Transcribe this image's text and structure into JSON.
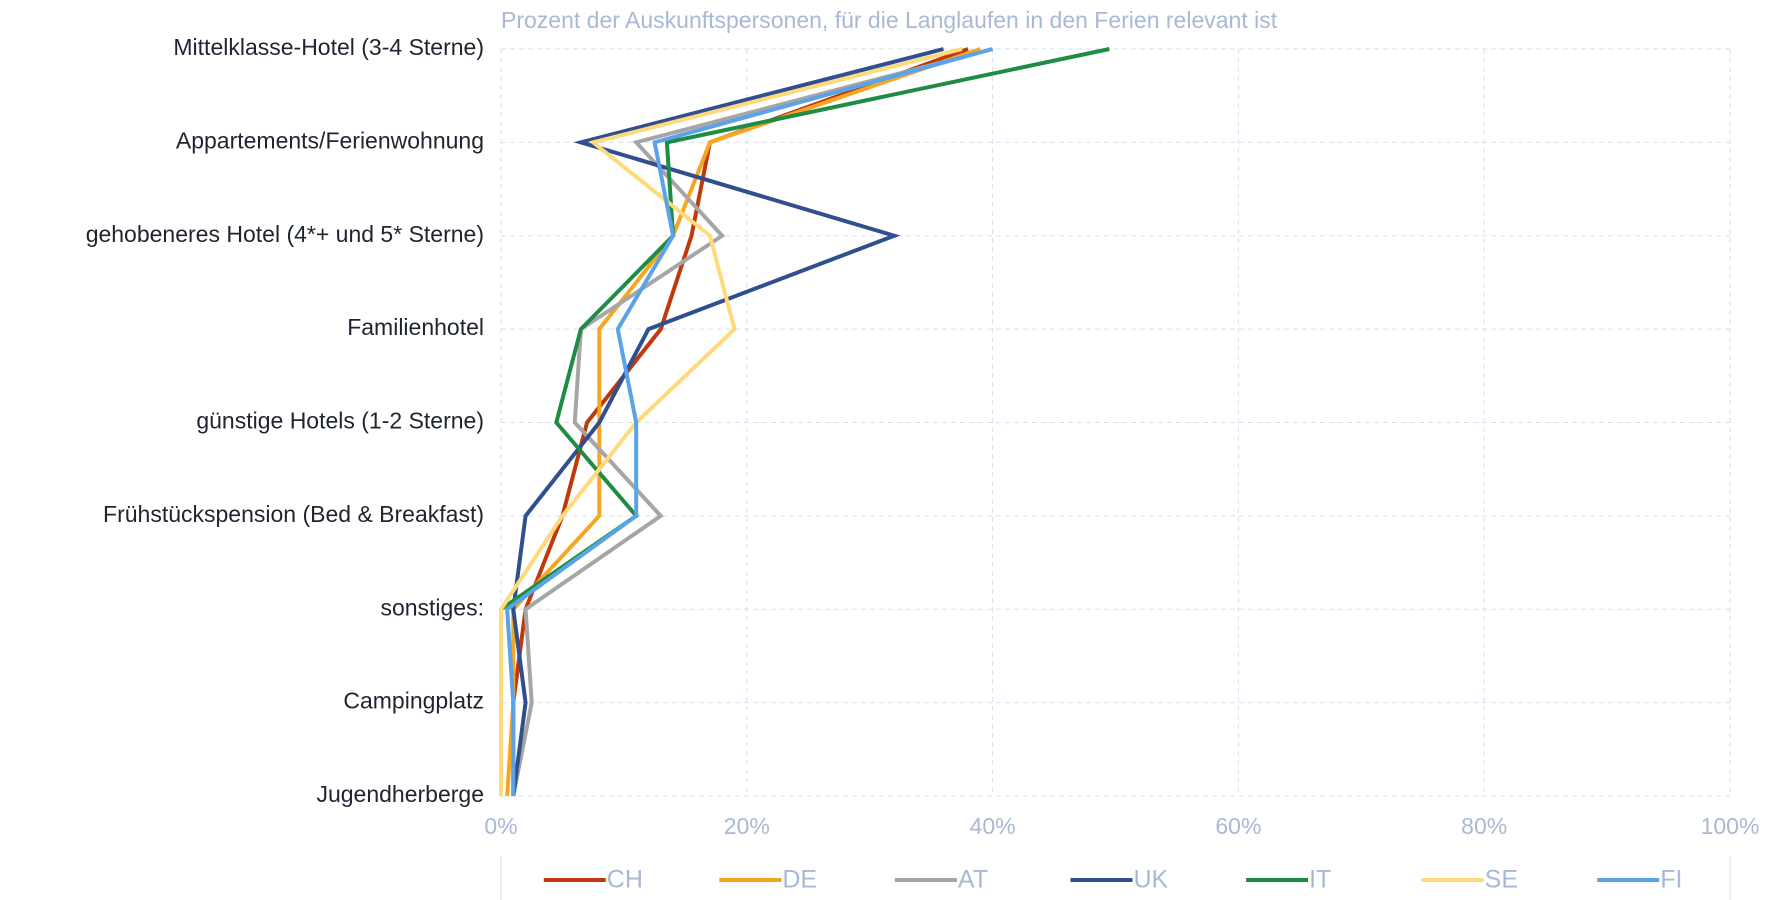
{
  "chart_data": {
    "type": "line",
    "orientation": "horizontal",
    "title": "Prozent der Auskunftspersonen, für die Langlaufen in den Ferien relevant ist",
    "categories": [
      "Mittelklasse-Hotel (3-4 Sterne)",
      "Appartements/Ferienwohnung",
      "gehobeneres Hotel (4*+ und 5* Sterne)",
      "Familienhotel",
      "günstige Hotels (1-2 Sterne)",
      "Frühstückspension (Bed & Breakfast)",
      "sonstiges:",
      "Campingplatz",
      "Jugendherberge"
    ],
    "xlim": [
      0,
      100
    ],
    "xticks": [
      {
        "value": 0,
        "label": "0%"
      },
      {
        "value": 20,
        "label": "20%"
      },
      {
        "value": 40,
        "label": "40%"
      },
      {
        "value": 60,
        "label": "60%"
      },
      {
        "value": 80,
        "label": "80%"
      },
      {
        "value": 100,
        "label": "100%"
      }
    ],
    "grid": true,
    "legend": "bottom",
    "series": [
      {
        "name": "CH",
        "color": "#c0390b",
        "values": [
          38,
          17,
          15.5,
          13,
          7,
          5,
          2,
          1,
          1
        ]
      },
      {
        "name": "DE",
        "color": "#f5a623",
        "values": [
          39,
          17,
          14,
          8,
          8,
          8,
          1,
          1,
          0.5
        ]
      },
      {
        "name": "AT",
        "color": "#a6a6a6",
        "values": [
          40,
          11,
          18,
          6.5,
          6,
          13,
          2,
          2.5,
          1
        ]
      },
      {
        "name": "UK",
        "color": "#2f4f8f",
        "values": [
          36,
          6.5,
          32,
          12,
          8,
          2,
          1,
          2,
          1
        ]
      },
      {
        "name": "IT",
        "color": "#1e8c45",
        "values": [
          49.5,
          13.5,
          14,
          6.5,
          4.5,
          11,
          0,
          0,
          0
        ]
      },
      {
        "name": "SE",
        "color": "#ffd97a",
        "values": [
          37.5,
          7.5,
          17,
          19,
          11,
          5,
          0,
          0,
          0
        ]
      },
      {
        "name": "FI",
        "color": "#5ba3e8",
        "values": [
          40,
          12.5,
          14,
          9.5,
          11,
          11,
          0.5,
          1,
          1
        ]
      }
    ]
  }
}
